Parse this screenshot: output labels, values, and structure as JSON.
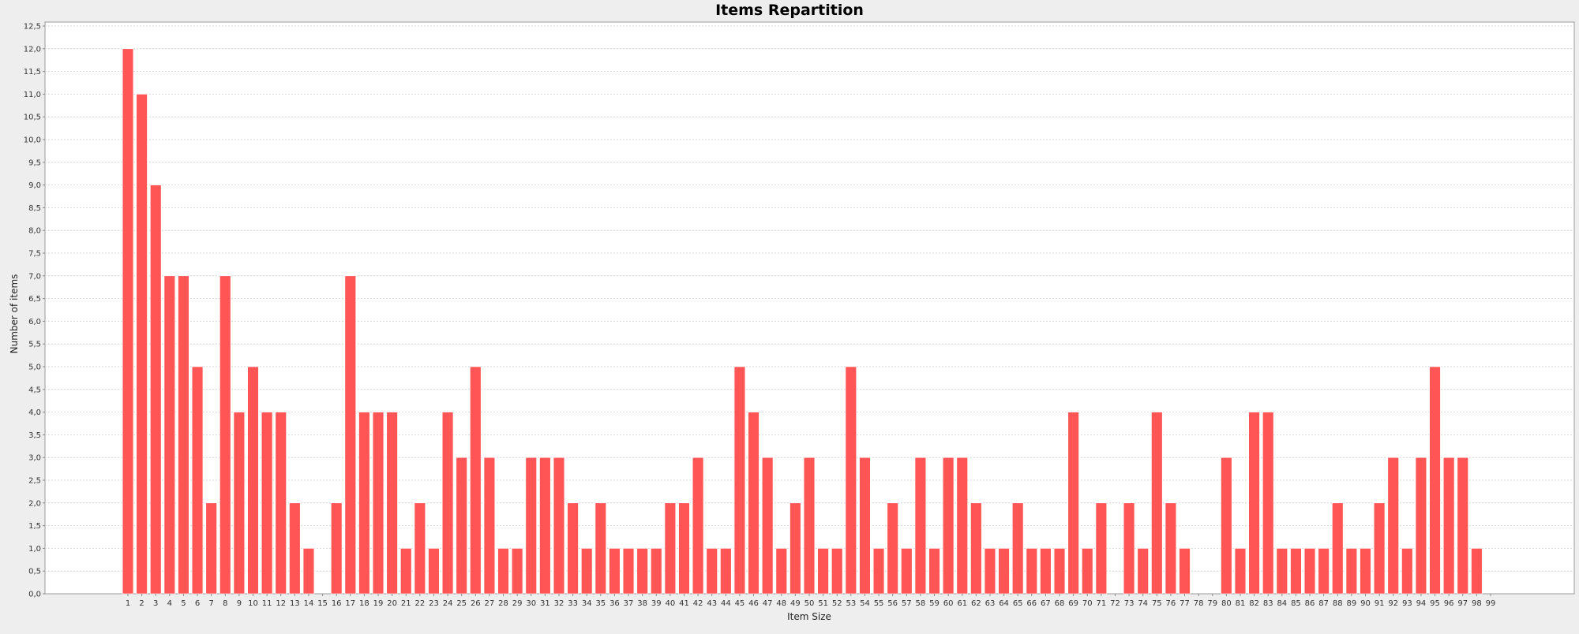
{
  "chart_data": {
    "type": "bar",
    "title": "Items Repartition",
    "xlabel": "Item Size",
    "ylabel": "Number of items",
    "ylim": [
      0,
      12.5
    ],
    "ytick_step": 0.5,
    "ytick_labels": [
      "0,0",
      "0,5",
      "1,0",
      "1,5",
      "2,0",
      "2,5",
      "3,0",
      "3,5",
      "4,0",
      "4,5",
      "5,0",
      "5,5",
      "6,0",
      "6,5",
      "7,0",
      "7,5",
      "8,0",
      "8,5",
      "9,0",
      "9,5",
      "10,0",
      "10,5",
      "11,0",
      "11,5",
      "12,0",
      "12,5"
    ],
    "grid": true,
    "legend": "none",
    "categories": [
      "1",
      "2",
      "3",
      "4",
      "5",
      "6",
      "7",
      "8",
      "9",
      "10",
      "11",
      "12",
      "13",
      "14",
      "15",
      "16",
      "17",
      "18",
      "19",
      "20",
      "21",
      "22",
      "23",
      "24",
      "25",
      "26",
      "27",
      "28",
      "29",
      "30",
      "31",
      "32",
      "33",
      "34",
      "35",
      "36",
      "37",
      "38",
      "39",
      "40",
      "41",
      "42",
      "43",
      "44",
      "45",
      "46",
      "47",
      "48",
      "49",
      "50",
      "51",
      "52",
      "53",
      "54",
      "55",
      "56",
      "57",
      "58",
      "59",
      "60",
      "61",
      "62",
      "63",
      "64",
      "65",
      "66",
      "67",
      "68",
      "69",
      "70",
      "71",
      "72",
      "73",
      "74",
      "75",
      "76",
      "77",
      "78",
      "79",
      "80",
      "81",
      "82",
      "83",
      "84",
      "85",
      "86",
      "87",
      "88",
      "89",
      "90",
      "91",
      "92",
      "93",
      "94",
      "95",
      "96",
      "97",
      "98",
      "99"
    ],
    "values": [
      12,
      11,
      9,
      7,
      7,
      5,
      2,
      7,
      4,
      5,
      4,
      4,
      2,
      1,
      0,
      2,
      7,
      4,
      4,
      4,
      1,
      2,
      1,
      4,
      3,
      5,
      3,
      1,
      1,
      3,
      3,
      3,
      2,
      1,
      2,
      1,
      1,
      1,
      1,
      2,
      2,
      3,
      1,
      1,
      5,
      4,
      3,
      1,
      2,
      3,
      1,
      1,
      5,
      3,
      1,
      2,
      1,
      3,
      1,
      3,
      3,
      2,
      1,
      1,
      2,
      1,
      1,
      1,
      4,
      1,
      2,
      0,
      2,
      1,
      4,
      2,
      1,
      0,
      0,
      3,
      1,
      4,
      4,
      1,
      1,
      1,
      1,
      2,
      1,
      1,
      2,
      3,
      1,
      3,
      5,
      3,
      3,
      1,
      0
    ],
    "bar_color": "#ff5555",
    "bar_edge_color": "#ffffff"
  }
}
